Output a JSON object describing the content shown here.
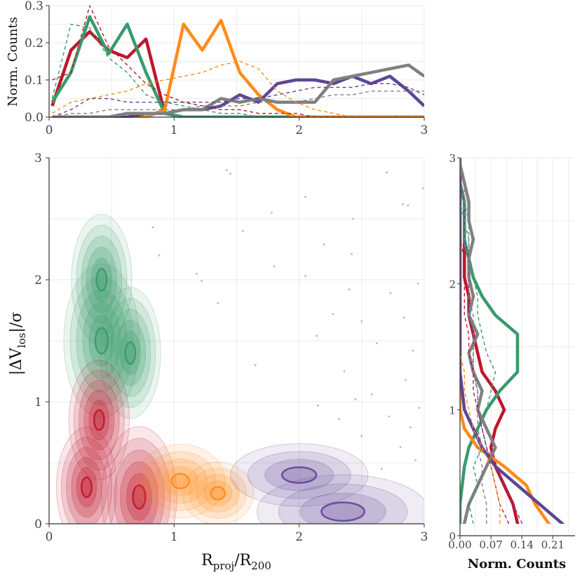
{
  "chart_data": [
    {
      "id": "top-marginal",
      "type": "line",
      "ylabel": "Norm. Counts",
      "xlim": [
        0,
        3
      ],
      "ylim": [
        0,
        0.3
      ],
      "x_ticks": [
        0,
        1,
        2,
        3
      ],
      "y_ticks": [
        0.0,
        0.1,
        0.2,
        0.3
      ],
      "x_tick_labels": [
        "0",
        "1",
        "2",
        "3"
      ],
      "y_tick_labels": [
        "0.0",
        "0.1",
        "0.2",
        "0.3"
      ],
      "grid": true,
      "x": [
        0.025,
        0.175,
        0.325,
        0.475,
        0.625,
        0.775,
        0.925,
        1.075,
        1.225,
        1.375,
        1.525,
        1.675,
        1.825,
        1.975,
        2.125,
        2.275,
        2.425,
        2.575,
        2.725,
        2.875,
        3.0
      ],
      "series": [
        {
          "color": "#c0162d",
          "style": "solid",
          "values": [
            0.03,
            0.18,
            0.23,
            0.18,
            0.16,
            0.21,
            0.01,
            0,
            0,
            0,
            0,
            0,
            0,
            0,
            0,
            0,
            0,
            0,
            0,
            0,
            0
          ]
        },
        {
          "color": "#3a9a6c",
          "style": "solid",
          "values": [
            0.04,
            0.12,
            0.27,
            0.17,
            0.25,
            0.12,
            0.01,
            0,
            0,
            0,
            0,
            0,
            0,
            0,
            0,
            0,
            0,
            0,
            0,
            0,
            0
          ]
        },
        {
          "color": "#ff8c1a",
          "style": "solid",
          "values": [
            0,
            0,
            0,
            0,
            0,
            0,
            0.02,
            0.25,
            0.18,
            0.26,
            0.12,
            0.06,
            0.02,
            0,
            0,
            0,
            0,
            0,
            0,
            0,
            0
          ]
        },
        {
          "color": "#5e4596",
          "style": "solid",
          "values": [
            0,
            0,
            0,
            0,
            0,
            0.01,
            0.01,
            0.02,
            0.02,
            0.03,
            0.06,
            0.04,
            0.09,
            0.1,
            0.1,
            0.09,
            0.11,
            0.09,
            0.11,
            0.07,
            0.03
          ]
        },
        {
          "color": "#808080",
          "style": "solid",
          "values": [
            0,
            0,
            0,
            0,
            0.01,
            0.01,
            0.01,
            0.02,
            0.02,
            0.05,
            0.04,
            0.05,
            0.04,
            0.04,
            0.04,
            0.1,
            0.11,
            0.12,
            0.13,
            0.14,
            0.11
          ]
        },
        {
          "color": "#c0162d",
          "style": "dashed",
          "values": [
            0.1,
            0.12,
            0.3,
            0.19,
            0.14,
            0.09,
            0.06,
            0.04,
            0.03,
            0.02,
            0.02,
            0.01,
            0.01,
            0.01,
            0,
            0,
            0,
            0,
            0,
            0,
            0
          ]
        },
        {
          "color": "#3a9a6c",
          "style": "dashed",
          "values": [
            0.05,
            0.25,
            0.24,
            0.16,
            0.12,
            0.06,
            0.04,
            0.03,
            0.02,
            0.01,
            0.01,
            0,
            0,
            0,
            0,
            0,
            0,
            0,
            0,
            0,
            0
          ]
        },
        {
          "color": "#ff8c1a",
          "style": "dashed",
          "values": [
            0.01,
            0.04,
            0.05,
            0.06,
            0.07,
            0.09,
            0.1,
            0.11,
            0.12,
            0.14,
            0.15,
            0.13,
            0.07,
            0.04,
            0.02,
            0.01,
            0,
            0,
            0,
            0,
            0
          ]
        },
        {
          "color": "#5e4596",
          "style": "dashed",
          "values": [
            0,
            0.02,
            0.05,
            0.05,
            0.04,
            0.04,
            0.04,
            0.04,
            0.04,
            0.04,
            0.05,
            0.05,
            0.06,
            0.07,
            0.08,
            0.08,
            0.08,
            0.09,
            0.09,
            0.08,
            0.06
          ]
        },
        {
          "color": "#808080",
          "style": "dashed",
          "values": [
            0,
            0.01,
            0.01,
            0.02,
            0.02,
            0.02,
            0.02,
            0.02,
            0.03,
            0.03,
            0.03,
            0.04,
            0.04,
            0.04,
            0.05,
            0.06,
            0.06,
            0.07,
            0.07,
            0.07,
            0.07
          ]
        }
      ]
    },
    {
      "id": "main-density",
      "type": "contour",
      "xlabel": "R<sub>proj</sub>/R<sub>200</sub>",
      "xlabel_parts": {
        "main": "R",
        "sub1": "proj",
        "sep": "/R",
        "sub2": "200"
      },
      "ylabel_parts": {
        "pre": "|ΔV",
        "sub": "los",
        "post": "|/σ"
      },
      "xlim": [
        0,
        3
      ],
      "ylim": [
        0,
        3
      ],
      "x_ticks": [
        0,
        1,
        2,
        3
      ],
      "y_ticks": [
        0,
        1,
        2,
        3
      ],
      "x_tick_labels": [
        "0",
        "1",
        "2",
        "3"
      ],
      "y_tick_labels": [
        "0",
        "1",
        "2",
        "3"
      ],
      "grid": true,
      "populations": [
        {
          "color": "#3a9a6c",
          "centers": [
            [
              0.42,
              1.5
            ],
            [
              0.65,
              1.4
            ],
            [
              0.42,
              2.0
            ]
          ],
          "spread": [
            0.55,
            1.15
          ],
          "levels": 6
        },
        {
          "color": "#c0162d",
          "centers": [
            [
              0.72,
              0.22
            ],
            [
              0.4,
              0.85
            ],
            [
              0.3,
              0.3
            ]
          ],
          "spread": [
            0.55,
            1.05
          ],
          "levels": 6
        },
        {
          "color": "#ff8c1a",
          "centers": [
            [
              1.05,
              0.35
            ],
            [
              1.35,
              0.25
            ]
          ],
          "spread": [
            0.65,
            0.55
          ],
          "levels": 5
        },
        {
          "color": "#5e4596",
          "centers": [
            [
              2.35,
              0.1
            ],
            [
              2.0,
              0.4
            ]
          ],
          "spread": [
            1.25,
            0.55
          ],
          "levels": 4
        }
      ],
      "scatter_points": [
        [
          1.42,
          2.9
        ],
        [
          1.45,
          2.87
        ],
        [
          2.7,
          2.88
        ],
        [
          1.78,
          2.55
        ],
        [
          2.43,
          2.5
        ],
        [
          2.87,
          2.61
        ],
        [
          1.55,
          2.4
        ],
        [
          2.83,
          2.62
        ],
        [
          2.2,
          2.29
        ],
        [
          2.42,
          2.21
        ],
        [
          1.8,
          2.11
        ],
        [
          1.18,
          2.05
        ],
        [
          1.22,
          1.99
        ],
        [
          2.05,
          2.03
        ],
        [
          2.4,
          1.92
        ],
        [
          2.73,
          1.89
        ],
        [
          2.95,
          1.97
        ],
        [
          1.35,
          1.81
        ],
        [
          2.27,
          1.72
        ],
        [
          2.5,
          1.66
        ],
        [
          2.84,
          1.69
        ],
        [
          2.14,
          1.54
        ],
        [
          2.62,
          1.48
        ],
        [
          2.91,
          1.42
        ],
        [
          1.65,
          1.3
        ],
        [
          2.36,
          1.25
        ],
        [
          2.85,
          1.18
        ],
        [
          2.58,
          1.06
        ],
        [
          2.96,
          0.95
        ],
        [
          2.72,
          0.88
        ],
        [
          2.32,
          0.86
        ],
        [
          2.89,
          0.79
        ],
        [
          2.5,
          0.72
        ],
        [
          2.81,
          0.63
        ],
        [
          2.93,
          0.52
        ],
        [
          2.66,
          0.45
        ],
        [
          0.83,
          2.43
        ],
        [
          0.88,
          2.2
        ],
        [
          2.15,
          0.97
        ],
        [
          2.45,
          1.02
        ],
        [
          2.99,
          2.75
        ],
        [
          2.05,
          2.68
        ]
      ]
    },
    {
      "id": "right-marginal",
      "type": "line",
      "xlabel": "Norm. Counts",
      "xlim": [
        0,
        0.26
      ],
      "ylim": [
        0,
        3
      ],
      "x_ticks": [
        0.0,
        0.07,
        0.14,
        0.21
      ],
      "y_ticks": [
        0,
        1,
        2,
        3
      ],
      "x_tick_labels": [
        "0.00",
        "0.07",
        "0.14",
        "0.21"
      ],
      "y_tick_labels": [
        "0",
        "1",
        "2",
        "3"
      ],
      "grid": true,
      "y": [
        0.0,
        0.1,
        0.25,
        0.4,
        0.55,
        0.7,
        0.85,
        1.0,
        1.15,
        1.3,
        1.45,
        1.6,
        1.75,
        1.9,
        2.05,
        2.2,
        2.35,
        2.5,
        2.65,
        2.8,
        2.95,
        3.0
      ],
      "series": [
        {
          "color": "#c0162d",
          "style": "solid",
          "values": [
            0.14,
            0.13,
            0.12,
            0.1,
            0.08,
            0.07,
            0.08,
            0.1,
            0.08,
            0.05,
            0.04,
            0.03,
            0.02,
            0.02,
            0.01,
            0.01,
            0.01,
            0.01,
            0.01,
            0.0,
            0.0,
            0.0
          ]
        },
        {
          "color": "#3a9a6c",
          "style": "solid",
          "values": [
            0.0,
            0.0,
            0.0,
            0.005,
            0.01,
            0.02,
            0.04,
            0.06,
            0.09,
            0.13,
            0.13,
            0.13,
            0.08,
            0.05,
            0.03,
            0.02,
            0.01,
            0.01,
            0.01,
            0.0,
            0.0,
            0.0
          ]
        },
        {
          "color": "#ff8c1a",
          "style": "solid",
          "values": [
            0.23,
            0.2,
            0.17,
            0.15,
            0.1,
            0.04,
            0.01,
            0.0,
            0.0,
            0.0,
            0.0,
            0.0,
            0.0,
            0.0,
            0.0,
            0.0,
            0.0,
            0.0,
            0.0,
            0.0,
            0.0,
            0.0
          ]
        },
        {
          "color": "#5e4596",
          "style": "solid",
          "values": [
            0.26,
            0.23,
            0.18,
            0.13,
            0.08,
            0.05,
            0.03,
            0.01,
            0.005,
            0.0,
            0.0,
            0.0,
            0.0,
            0.0,
            0.0,
            0.0,
            0.0,
            0.0,
            0.0,
            0.0,
            0.0,
            0.0
          ]
        },
        {
          "color": "#808080",
          "style": "solid",
          "values": [
            0.0,
            0.01,
            0.02,
            0.04,
            0.06,
            0.08,
            0.06,
            0.04,
            0.05,
            0.03,
            0.02,
            0.04,
            0.02,
            0.03,
            0.02,
            0.02,
            0.03,
            0.02,
            0.02,
            0.01,
            0.0,
            0.0
          ]
        },
        {
          "color": "#c0162d",
          "style": "dashed",
          "values": [
            0.12,
            0.11,
            0.09,
            0.08,
            0.07,
            0.06,
            0.05,
            0.04,
            0.03,
            0.03,
            0.02,
            0.02,
            0.01,
            0.01,
            0.01,
            0.01,
            0.0,
            0.0,
            0.0,
            0.0,
            0.0,
            0.0
          ]
        },
        {
          "color": "#3a9a6c",
          "style": "dashed",
          "values": [
            0.02,
            0.03,
            0.02,
            0.04,
            0.03,
            0.05,
            0.04,
            0.06,
            0.07,
            0.08,
            0.06,
            0.05,
            0.04,
            0.04,
            0.03,
            0.02,
            0.02,
            0.01,
            0.0,
            0.0,
            0.0,
            0.0
          ]
        },
        {
          "color": "#ff8c1a",
          "style": "dashed",
          "values": [
            0.1,
            0.09,
            0.09,
            0.08,
            0.07,
            0.05,
            0.03,
            0.02,
            0.01,
            0.01,
            0.0,
            0.0,
            0.0,
            0.0,
            0.0,
            0.0,
            0.0,
            0.0,
            0.0,
            0.0,
            0.0,
            0.0
          ]
        },
        {
          "color": "#5e4596",
          "style": "dashed",
          "values": [
            0.15,
            0.14,
            0.12,
            0.1,
            0.08,
            0.06,
            0.05,
            0.04,
            0.04,
            0.03,
            0.03,
            0.03,
            0.02,
            0.02,
            0.02,
            0.02,
            0.01,
            0.01,
            0.01,
            0.0,
            0.0,
            0.0
          ]
        },
        {
          "color": "#808080",
          "style": "dashed",
          "values": [
            0.07,
            0.06,
            0.06,
            0.05,
            0.05,
            0.04,
            0.04,
            0.04,
            0.04,
            0.03,
            0.03,
            0.03,
            0.03,
            0.02,
            0.02,
            0.02,
            0.02,
            0.02,
            0.01,
            0.01,
            0.0,
            0.0
          ]
        }
      ]
    }
  ]
}
